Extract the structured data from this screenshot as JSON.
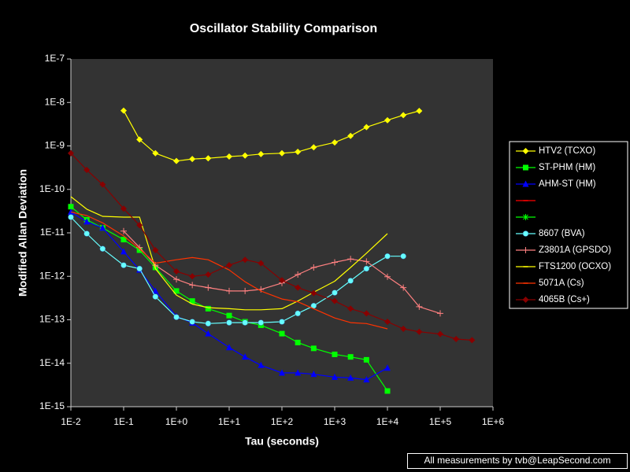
{
  "chart_data": {
    "type": "line",
    "title": "Oscillator Stability Comparison",
    "x_label": "Tau (seconds)",
    "y_label": "Modified Allan Deviation",
    "footer": "All measurements by tvb@LeapSecond.com",
    "log_x": true,
    "log_y": true,
    "grid": false,
    "legend": "right",
    "xlim": [
      0.01,
      1000000
    ],
    "ylim": [
      1e-15,
      1e-07
    ],
    "xticks": [
      {
        "value": 0.01,
        "label": "1E-2"
      },
      {
        "value": 0.1,
        "label": "1E-1"
      },
      {
        "value": 1,
        "label": "1E+0"
      },
      {
        "value": 10,
        "label": "1E+1"
      },
      {
        "value": 100,
        "label": "1E+2"
      },
      {
        "value": 1000,
        "label": "1E+3"
      },
      {
        "value": 10000,
        "label": "1E+4"
      },
      {
        "value": 100000,
        "label": "1E+5"
      },
      {
        "value": 1000000,
        "label": "1E+6"
      }
    ],
    "yticks": [
      {
        "value": 1e-15,
        "label": "1E-15"
      },
      {
        "value": 1e-14,
        "label": "1E-14"
      },
      {
        "value": 1e-13,
        "label": "1E-13"
      },
      {
        "value": 1e-12,
        "label": "1E-12"
      },
      {
        "value": 1e-11,
        "label": "1E-11"
      },
      {
        "value": 1e-10,
        "label": "1E-10"
      },
      {
        "value": 1e-09,
        "label": "1E-9"
      },
      {
        "value": 1e-08,
        "label": "1E-8"
      },
      {
        "value": 1e-07,
        "label": "1E-7"
      }
    ],
    "series": [
      {
        "name": "HTV2 (TCXO)",
        "color": "#ffff00",
        "marker": "diamond",
        "x": [
          0.1,
          0.2,
          0.4,
          1,
          2,
          4,
          10,
          20,
          40,
          100,
          200,
          400,
          1000,
          2000,
          4000,
          10000,
          20000,
          40000
        ],
        "values": [
          6.5e-09,
          1.4e-09,
          6.8e-10,
          4.5e-10,
          5e-10,
          5.2e-10,
          5.7e-10,
          6e-10,
          6.5e-10,
          6.8e-10,
          7.3e-10,
          9.3e-10,
          1.2e-09,
          1.7e-09,
          2.7e-09,
          3.9e-09,
          5.1e-09,
          6.4e-09
        ]
      },
      {
        "name": "ST-PHM (HM)",
        "color": "#00ff00",
        "marker": "square",
        "x": [
          0.01,
          0.02,
          0.04,
          0.1,
          0.2,
          0.4,
          1,
          2,
          4,
          10,
          20,
          40,
          100,
          200,
          400,
          1000,
          2000,
          4000,
          10000
        ],
        "values": [
          4e-11,
          2e-11,
          1.3e-11,
          7e-12,
          4e-12,
          1.6e-12,
          4.6e-13,
          2.7e-13,
          1.8e-13,
          1.25e-13,
          9e-14,
          7.5e-14,
          4.8e-14,
          3e-14,
          2.2e-14,
          1.6e-14,
          1.4e-14,
          1.2e-14,
          2.3e-15
        ]
      },
      {
        "name": "AHM-ST (HM)",
        "color": "#0000ff",
        "marker": "triangle",
        "x": [
          0.01,
          0.02,
          0.04,
          0.1,
          0.2,
          0.4,
          1,
          2,
          4,
          10,
          20,
          40,
          100,
          200,
          400,
          1000,
          2000,
          4000,
          10000
        ],
        "values": [
          3e-11,
          1.8e-11,
          1.3e-11,
          3.7e-12,
          1.4e-12,
          4.6e-13,
          1.2e-13,
          8.5e-14,
          4.8e-14,
          2.3e-14,
          1.4e-14,
          9e-15,
          6e-15,
          6e-15,
          5.6e-15,
          4.8e-15,
          4.6e-15,
          4.2e-15,
          7.8e-15
        ]
      },
      {
        "name": null,
        "color": "#ff0000",
        "marker": "dash",
        "x": [],
        "values": []
      },
      {
        "name": null,
        "color": "#00ff00",
        "marker": "star",
        "x": [],
        "values": []
      },
      {
        "name": "8607 (BVA)",
        "color": "#66ffff",
        "marker": "circle",
        "x": [
          0.01,
          0.02,
          0.04,
          0.1,
          0.2,
          0.4,
          1,
          2,
          4,
          10,
          20,
          40,
          100,
          200,
          400,
          1000,
          2000,
          4000,
          10000,
          20000
        ],
        "values": [
          2.3e-11,
          9.6e-12,
          4.3e-12,
          1.8e-12,
          1.5e-12,
          3.4e-13,
          1.15e-13,
          9e-14,
          8.2e-14,
          8.6e-14,
          8.6e-14,
          8.6e-14,
          9e-14,
          1.4e-13,
          2.1e-13,
          4.2e-13,
          7.9e-13,
          1.5e-12,
          2.9e-12,
          2.9e-12
        ]
      },
      {
        "name": "Z3801A (GPSDO)",
        "color": "#ff8080",
        "marker": "plus",
        "x": [
          0.1,
          0.2,
          0.4,
          1,
          2,
          4,
          10,
          20,
          40,
          100,
          200,
          400,
          1000,
          2000,
          4000,
          10000,
          20000,
          40000,
          100000
        ],
        "values": [
          1.1e-11,
          4.6e-12,
          1.8e-12,
          8.5e-13,
          6.3e-13,
          5.5e-13,
          4.6e-13,
          4.6e-13,
          5e-13,
          7e-13,
          1.1e-12,
          1.6e-12,
          2.1e-12,
          2.5e-12,
          2.2e-12,
          9.8e-13,
          5.5e-13,
          2e-13,
          1.4e-13
        ]
      },
      {
        "name": "FTS1200 (OCXO)",
        "color": "#ffff00",
        "marker": "dash",
        "x": [
          0.01,
          0.02,
          0.04,
          0.1,
          0.2,
          0.4,
          1,
          2,
          4,
          10,
          20,
          40,
          100,
          200,
          400,
          1000,
          2000,
          4000,
          10000
        ],
        "values": [
          6.8e-11,
          3.5e-11,
          2.4e-11,
          2.3e-11,
          2.3e-11,
          1.5e-12,
          3.7e-13,
          2.3e-13,
          1.9e-13,
          1.8e-13,
          1.7e-13,
          1.7e-13,
          1.8e-13,
          2.7e-13,
          4.3e-13,
          7.7e-13,
          1.6e-12,
          3.4e-12,
          9.6e-12
        ]
      },
      {
        "name": "5071A (Cs)",
        "color": "#ff3300",
        "marker": "dash",
        "x": [
          0.01,
          0.02,
          0.04,
          0.1,
          0.2,
          0.4,
          1,
          2,
          4,
          10,
          20,
          40,
          100,
          200,
          400,
          1000,
          2000,
          4000,
          10000
        ],
        "values": [
          3e-11,
          2.5e-11,
          1.7e-11,
          8.5e-12,
          4.3e-12,
          2e-12,
          2.4e-12,
          2.7e-12,
          2.4e-12,
          1.4e-12,
          7.5e-13,
          4.6e-13,
          3e-13,
          2.6e-13,
          1.8e-13,
          1.1e-13,
          8.6e-14,
          8.2e-14,
          6.2e-14
        ]
      },
      {
        "name": "4065B (Cs+)",
        "color": "#880000",
        "marker": "diamond",
        "x": [
          0.01,
          0.02,
          0.04,
          0.1,
          0.2,
          0.4,
          1,
          2,
          4,
          10,
          20,
          40,
          100,
          200,
          400,
          1000,
          2000,
          4000,
          10000,
          20000,
          40000,
          100000,
          200000,
          400000
        ],
        "values": [
          6.8e-10,
          2.8e-10,
          1.3e-10,
          3.6e-11,
          1.5e-11,
          4e-12,
          1.3e-12,
          1e-12,
          1.1e-12,
          1.8e-12,
          2.4e-12,
          2e-12,
          8.1e-13,
          5.5e-13,
          4.1e-13,
          2.7e-13,
          1.8e-13,
          1.4e-13,
          9e-14,
          6.2e-14,
          5.3e-14,
          4.7e-14,
          3.6e-14,
          3.4e-14
        ]
      }
    ]
  }
}
